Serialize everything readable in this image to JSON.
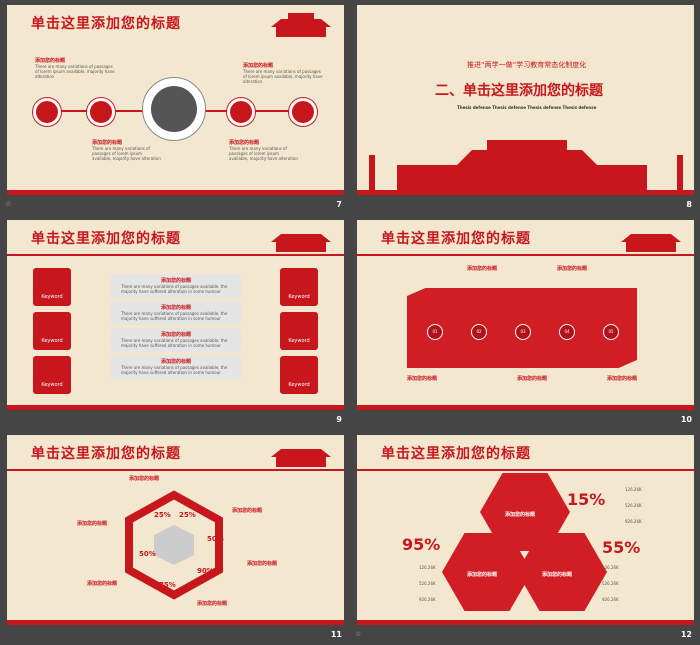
{
  "slides": [
    {
      "number": "7",
      "title": "单击这里添加您的标题",
      "labels": [
        "添加您的标题",
        "添加您的标题",
        "添加您的标题"
      ],
      "body": "There are many variations of passages of lorem ipsum available, majority have alteration"
    },
    {
      "number": "8",
      "subtitle": "推进“两学一做”学习教育常态化制度化",
      "title": "二、单击这里添加您的标题",
      "body": "Thesis defense Thesis defense Thesis defense Thesis defense"
    },
    {
      "number": "9",
      "title": "单击这里添加您的标题",
      "keyword": "Keyword",
      "label": "添加您的标题",
      "body": "There are many variations of passages available, the majority have suffered alteration in some humour"
    },
    {
      "number": "10",
      "title": "单击这里添加您的标题",
      "steps": [
        "01",
        "02",
        "03",
        "04",
        "05"
      ],
      "label": "添加您的标题",
      "body": "There are many variations of passages of lorem"
    },
    {
      "number": "11",
      "title": "单击这里添加您的标题",
      "percents": [
        "25%",
        "25%",
        "50%",
        "90%",
        "75%",
        "50%"
      ],
      "label": "添加您的标题",
      "body": "There are many variations of passages available, the majority"
    },
    {
      "number": "12",
      "title": "单击这里添加您的标题",
      "big": [
        "15%",
        "95%",
        "55%"
      ],
      "label": "添加您的标题",
      "stats": [
        "126.26K",
        "526.26K",
        "926.26K"
      ],
      "body": "There are many variations of passages of lorem ipsum available majority have suffered."
    }
  ],
  "star": "☆"
}
